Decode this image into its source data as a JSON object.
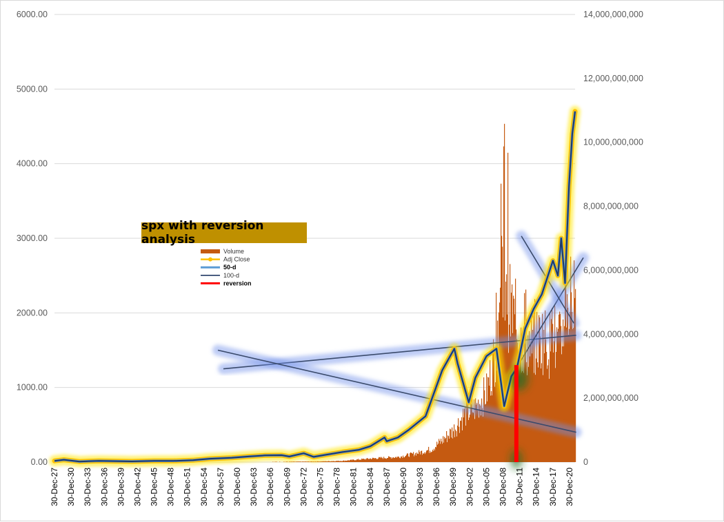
{
  "chart_data": {
    "type": "bar+line",
    "title": "spx with reversion analysis",
    "xlabel": "",
    "ylabel": "",
    "y_left": {
      "lim": [
        0,
        6000
      ],
      "ticks": [
        "0.00",
        "1000.00",
        "2000.00",
        "3000.00",
        "4000.00",
        "5000.00",
        "6000.00"
      ]
    },
    "y_right": {
      "lim": [
        0,
        14000000000
      ],
      "ticks": [
        "0",
        "2,000,000,000",
        "4,000,000,000",
        "6,000,000,000",
        "8,000,000,000",
        "10,000,000,000",
        "12,000,000,000",
        "14,000,000,000"
      ]
    },
    "x_range": [
      1927.99,
      2022.0
    ],
    "x_tick_labels": [
      "30-Dec-27",
      "30-Dec-30",
      "30-Dec-33",
      "30-Dec-36",
      "30-Dec-39",
      "30-Dec-42",
      "30-Dec-45",
      "30-Dec-48",
      "30-Dec-51",
      "30-Dec-54",
      "30-Dec-57",
      "30-Dec-60",
      "30-Dec-63",
      "30-Dec-66",
      "30-Dec-69",
      "30-Dec-72",
      "30-Dec-75",
      "30-Dec-78",
      "30-Dec-81",
      "30-Dec-84",
      "30-Dec-87",
      "30-Dec-90",
      "30-Dec-93",
      "30-Dec-96",
      "30-Dec-99",
      "30-Dec-02",
      "30-Dec-05",
      "30-Dec-08",
      "30-Dec-11",
      "30-Dec-14",
      "30-Dec-17",
      "30-Dec-20"
    ],
    "grid": true,
    "legend_position": "left-center",
    "legend": [
      {
        "label": "Volume",
        "color": "#c55a11",
        "kind": "bar"
      },
      {
        "label": "Adj Close",
        "color": "#ffc000",
        "kind": "line-marker"
      },
      {
        "label": "50-d",
        "color": "#5b9bd5",
        "kind": "line",
        "bold": true
      },
      {
        "label": "100-d",
        "color": "#203864",
        "kind": "line"
      },
      {
        "label": "reversion",
        "color": "#ff0000",
        "kind": "line",
        "bold": true
      }
    ],
    "series": [
      {
        "name": "Adj Close",
        "axis": "left",
        "x": [
          1928,
          1929.7,
          1932.5,
          1936,
          1942,
          1946,
          1949.5,
          1953,
          1956,
          1960,
          1963,
          1966,
          1969,
          1970.4,
          1973,
          1974.8,
          1977,
          1980,
          1983,
          1985,
          1987.6,
          1988,
          1990,
          1992,
          1995,
          1998,
          2000.2,
          2000.8,
          2002.8,
          2004,
          2006,
          2007.8,
          2009.2,
          2010.5,
          2011.5,
          2013,
          2014.5,
          2016,
          2018,
          2018.9,
          2019.5,
          2020.2,
          2020.9,
          2021.5,
          2022
        ],
        "y": [
          17,
          31,
          7,
          17,
          9,
          16,
          16,
          25,
          45,
          58,
          75,
          90,
          92,
          75,
          118,
          70,
          98,
          135,
          165,
          211,
          330,
          280,
          330,
          435,
          615,
          1230,
          1520,
          1320,
          800,
          1130,
          1420,
          1520,
          750,
          1150,
          1260,
          1790,
          2050,
          2250,
          2700,
          2500,
          3000,
          2400,
          3700,
          4400,
          4700
        ]
      },
      {
        "name": "50-d",
        "axis": "left",
        "x": [
          1928,
          1929.7,
          1932.5,
          1936,
          1942,
          1946,
          1949.5,
          1953,
          1956,
          1960,
          1963,
          1966,
          1969,
          1970.4,
          1973,
          1974.8,
          1977,
          1980,
          1983,
          1985,
          1987.6,
          1988,
          1990,
          1992,
          1995,
          1998,
          2000.2,
          2000.8,
          2002.8,
          2004,
          2006,
          2007.8,
          2009.2,
          2010.5,
          2011.5,
          2013,
          2014.5,
          2016,
          2018,
          2018.9,
          2019.5,
          2020.2,
          2020.9,
          2021.5,
          2022
        ],
        "y": [
          17,
          31,
          7,
          17,
          9,
          16,
          16,
          25,
          45,
          58,
          75,
          90,
          92,
          75,
          118,
          70,
          98,
          135,
          165,
          211,
          330,
          280,
          330,
          435,
          615,
          1230,
          1520,
          1320,
          800,
          1130,
          1420,
          1520,
          750,
          1150,
          1260,
          1790,
          2050,
          2250,
          2700,
          2500,
          3000,
          2400,
          3700,
          4400,
          4700
        ]
      },
      {
        "name": "100-d",
        "axis": "left",
        "x": [
          1928,
          1929.7,
          1932.5,
          1936,
          1942,
          1946,
          1949.5,
          1953,
          1956,
          1960,
          1963,
          1966,
          1969,
          1970.4,
          1973,
          1974.8,
          1977,
          1980,
          1983,
          1985,
          1987.6,
          1988,
          1990,
          1992,
          1995,
          1998,
          2000.2,
          2000.8,
          2002.8,
          2004,
          2006,
          2007.8,
          2009.2,
          2010.5,
          2011.5,
          2013,
          2014.5,
          2016,
          2018,
          2018.9,
          2019.5,
          2020.2,
          2020.9,
          2021.5,
          2022
        ],
        "y": [
          17,
          31,
          7,
          17,
          9,
          16,
          16,
          25,
          45,
          58,
          75,
          90,
          92,
          75,
          118,
          70,
          98,
          135,
          165,
          211,
          330,
          280,
          330,
          435,
          615,
          1230,
          1520,
          1320,
          800,
          1130,
          1420,
          1520,
          750,
          1150,
          1260,
          1790,
          2050,
          2250,
          2700,
          2500,
          3000,
          2400,
          3700,
          4400,
          4700
        ]
      },
      {
        "name": "Volume",
        "axis": "right",
        "x": [
          1928,
          1950,
          1960,
          1970,
          1975,
          1980,
          1985,
          1990,
          1993,
          1996,
          1998,
          2000,
          2002,
          2004,
          2006,
          2007.5,
          2008.8,
          2009.5,
          2010.5,
          2012,
          2014,
          2016,
          2018,
          2019.5,
          2020.3,
          2021,
          2022
        ],
        "y": [
          0,
          2000000,
          3000000,
          12000000,
          18000000,
          40000000,
          110000000,
          160000000,
          260000000,
          400000000,
          680000000,
          1000000000,
          1500000000,
          1700000000,
          2200000000,
          3400000000,
          6000000000,
          5000000000,
          4700000000,
          3800000000,
          3600000000,
          3900000000,
          3600000000,
          3700000000,
          5500000000,
          4600000000,
          4000000000
        ]
      }
    ],
    "annotations": [
      {
        "name": "trendline-rising",
        "axis": "left",
        "x": [
          1958.5,
          2022.2
        ],
        "y": [
          1250,
          1700
        ]
      },
      {
        "name": "trendline-falling",
        "axis": "left",
        "x": [
          1957.5,
          2022.2
        ],
        "y": [
          1500,
          400
        ]
      },
      {
        "name": "trendline-steep-up",
        "axis": "left",
        "x": [
          2011.8,
          2023.5
        ],
        "y": [
          1310,
          2740
        ]
      },
      {
        "name": "trendline-steep-down",
        "axis": "left",
        "x": [
          2012.3,
          2021.8
        ],
        "y": [
          3030,
          1860
        ]
      },
      {
        "name": "reversion",
        "axis": "left",
        "x": [
          2011.4,
          2011.4
        ],
        "y": [
          1300,
          0
        ]
      }
    ]
  }
}
